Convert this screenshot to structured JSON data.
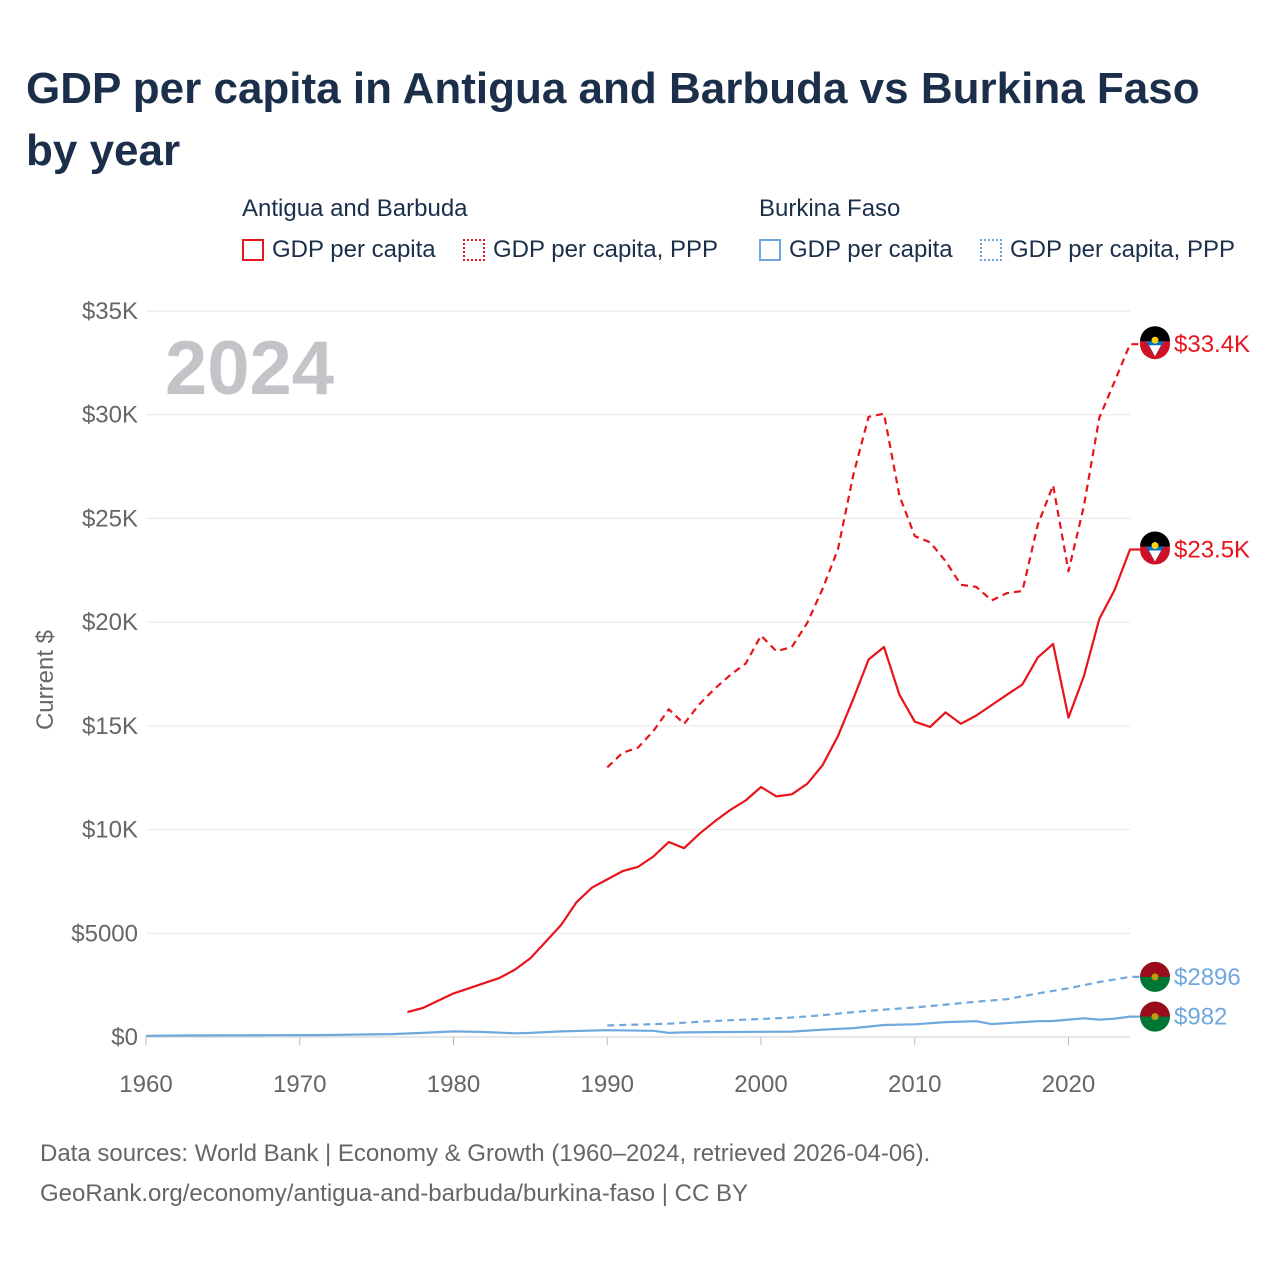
{
  "title": "GDP per capita in Antigua and Barbuda vs Burkina Faso by year",
  "legend": {
    "groups": [
      {
        "name": "Antigua and Barbuda",
        "items": [
          "GDP per capita",
          "GDP per capita, PPP"
        ],
        "color": "#e8141c"
      },
      {
        "name": "Burkina Faso",
        "items": [
          "GDP per capita",
          "GDP per capita, PPP"
        ],
        "color": "#6fa8dc"
      }
    ]
  },
  "year_label": "2024",
  "footer": {
    "line1": "Data sources: World Bank | Economy & Growth (1960–2024, retrieved 2026-04-06).",
    "line2": "GeoRank.org/economy/antigua-and-barbuda/burkina-faso | CC BY"
  },
  "chart_data": {
    "type": "line",
    "title": "GDP per capita in Antigua and Barbuda vs Burkina Faso by year",
    "xlabel": "",
    "ylabel": "Current $",
    "xlim": [
      1960,
      2024
    ],
    "ylim": [
      0,
      35000
    ],
    "x_ticks": [
      "1960",
      "1970",
      "1980",
      "1990",
      "2000",
      "2010",
      "2020"
    ],
    "x_tick_values": [
      1960,
      1970,
      1980,
      1990,
      2000,
      2010,
      2020
    ],
    "y_ticks": [
      "$0",
      "$5000",
      "$10K",
      "$15K",
      "$20K",
      "$25K",
      "$30K",
      "$35K"
    ],
    "y_tick_values": [
      0,
      5000,
      10000,
      15000,
      20000,
      25000,
      30000,
      35000
    ],
    "grid": true,
    "series": [
      {
        "name": "Antigua and Barbuda — GDP per capita",
        "color": "#e8141c",
        "dash": false,
        "end_label": "$23.5K",
        "x": [
          1977,
          1978,
          1979,
          1980,
          1981,
          1982,
          1983,
          1984,
          1985,
          1986,
          1987,
          1988,
          1989,
          1990,
          1991,
          1992,
          1993,
          1994,
          1995,
          1996,
          1997,
          1998,
          1999,
          2000,
          2001,
          2002,
          2003,
          2004,
          2005,
          2006,
          2007,
          2008,
          2009,
          2010,
          2011,
          2012,
          2013,
          2014,
          2015,
          2016,
          2017,
          2018,
          2019,
          2020,
          2021,
          2022,
          2023,
          2024
        ],
        "values": [
          1200,
          1400,
          1750,
          2100,
          2350,
          2600,
          2850,
          3250,
          3800,
          4600,
          5400,
          6500,
          7200,
          7600,
          8000,
          8200,
          8700,
          9400,
          9100,
          9800,
          10400,
          10950,
          11400,
          12050,
          11600,
          11700,
          12200,
          13100,
          14500,
          16300,
          18200,
          18800,
          16500,
          15200,
          14950,
          15650,
          15100,
          15500,
          16000,
          16500,
          17000,
          18300,
          18950,
          15400,
          17400,
          20150,
          21550,
          23500
        ]
      },
      {
        "name": "Antigua and Barbuda — GDP per capita, PPP",
        "color": "#e8141c",
        "dash": true,
        "end_label": "$33.4K",
        "x": [
          1990,
          1991,
          1992,
          1993,
          1994,
          1995,
          1996,
          1997,
          1998,
          1999,
          2000,
          2001,
          2002,
          2003,
          2004,
          2005,
          2006,
          2007,
          2008,
          2009,
          2010,
          2011,
          2012,
          2013,
          2014,
          2015,
          2016,
          2017,
          2018,
          2019,
          2020,
          2021,
          2022,
          2023,
          2024
        ],
        "values": [
          13000,
          13700,
          13950,
          14750,
          15800,
          15100,
          16050,
          16800,
          17450,
          18000,
          19350,
          18600,
          18800,
          19950,
          21600,
          23500,
          27100,
          29900,
          30050,
          26100,
          24150,
          23850,
          22950,
          21800,
          21700,
          21050,
          21400,
          21500,
          24700,
          26600,
          22450,
          25600,
          29850,
          31600,
          33400
        ]
      },
      {
        "name": "Burkina Faso — GDP per capita",
        "color": "#6fa8dc",
        "dash": false,
        "end_label": "$982",
        "x": [
          1960,
          1962,
          1964,
          1966,
          1968,
          1970,
          1972,
          1974,
          1976,
          1978,
          1980,
          1982,
          1984,
          1985,
          1987,
          1990,
          1993,
          1994,
          1995,
          1998,
          2000,
          2002,
          2004,
          2006,
          2008,
          2010,
          2012,
          2014,
          2015,
          2017,
          2018,
          2019,
          2020,
          2021,
          2022,
          2023,
          2024
        ],
        "values": [
          60,
          70,
          75,
          80,
          85,
          90,
          95,
          120,
          140,
          200,
          270,
          240,
          180,
          200,
          270,
          330,
          300,
          200,
          220,
          240,
          250,
          260,
          350,
          430,
          580,
          610,
          720,
          760,
          620,
          720,
          760,
          770,
          840,
          900,
          840,
          880,
          982
        ]
      },
      {
        "name": "Burkina Faso — GDP per capita, PPP",
        "color": "#6fa8dc",
        "dash": true,
        "end_label": "$2896",
        "x": [
          1990,
          1992,
          1994,
          1996,
          1998,
          2000,
          2002,
          2004,
          2006,
          2008,
          2010,
          2012,
          2014,
          2016,
          2018,
          2020,
          2022,
          2024
        ],
        "values": [
          560,
          600,
          640,
          740,
          810,
          870,
          940,
          1050,
          1200,
          1320,
          1420,
          1560,
          1700,
          1820,
          2100,
          2350,
          2650,
          2896
        ]
      }
    ]
  }
}
